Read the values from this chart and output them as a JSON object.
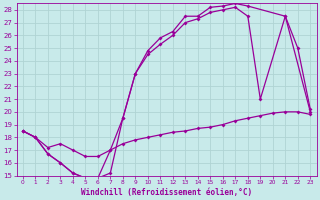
{
  "xlabel": "Windchill (Refroidissement éolien,°C)",
  "background_color": "#c8eaea",
  "grid_color": "#b0d4d4",
  "line_color": "#990099",
  "xlim": [
    -0.5,
    23.5
  ],
  "ylim": [
    15,
    28.5
  ],
  "xticks": [
    0,
    1,
    2,
    3,
    4,
    5,
    6,
    7,
    8,
    9,
    10,
    11,
    12,
    13,
    14,
    15,
    16,
    17,
    18,
    19,
    20,
    21,
    22,
    23
  ],
  "yticks": [
    15,
    16,
    17,
    18,
    19,
    20,
    21,
    22,
    23,
    24,
    25,
    26,
    27,
    28
  ],
  "curve1_x": [
    0,
    1,
    2,
    3,
    4,
    5,
    6,
    7,
    8,
    9,
    10,
    11,
    12,
    13,
    14,
    15,
    16,
    17,
    18,
    21,
    23
  ],
  "curve1_y": [
    18.5,
    18.0,
    16.7,
    16.0,
    15.2,
    14.8,
    14.8,
    15.2,
    19.5,
    23.0,
    24.8,
    25.8,
    26.3,
    27.5,
    27.5,
    28.2,
    28.3,
    28.5,
    28.3,
    27.5,
    20.0
  ],
  "curve2_x": [
    0,
    1,
    2,
    3,
    4,
    5,
    6,
    7,
    8,
    9,
    10,
    11,
    12,
    13,
    14,
    15,
    16,
    17,
    18,
    19,
    21,
    22,
    23
  ],
  "curve2_y": [
    18.5,
    18.0,
    16.7,
    16.0,
    15.2,
    14.8,
    14.8,
    17.0,
    19.5,
    23.0,
    24.5,
    25.3,
    26.0,
    27.0,
    27.3,
    27.8,
    28.0,
    28.2,
    27.5,
    21.0,
    27.5,
    25.0,
    20.2
  ],
  "curve3_x": [
    0,
    1,
    2,
    3,
    4,
    5,
    6,
    7,
    8,
    9,
    10,
    11,
    12,
    13,
    14,
    15,
    16,
    17,
    18,
    19,
    20,
    21,
    22,
    23
  ],
  "curve3_y": [
    18.5,
    18.0,
    17.2,
    17.5,
    17.0,
    16.5,
    16.5,
    17.0,
    17.5,
    17.8,
    18.0,
    18.2,
    18.4,
    18.5,
    18.7,
    18.8,
    19.0,
    19.3,
    19.5,
    19.7,
    19.9,
    20.0,
    20.0,
    19.8
  ]
}
